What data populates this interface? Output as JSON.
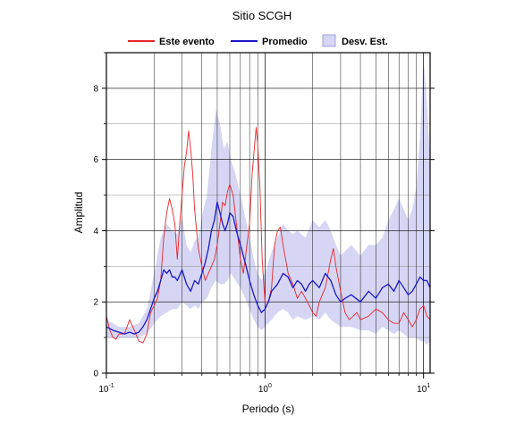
{
  "chart_data": {
    "type": "line",
    "title": "Sitio SCGH",
    "xlabel": "Periodo (s)",
    "ylabel": "Amplitud",
    "x_scale": "log",
    "xlim": [
      0.1,
      11
    ],
    "ylim": [
      0,
      9
    ],
    "y_ticks": [
      "0",
      "2",
      "4",
      "6",
      "8"
    ],
    "x_ticks": [
      {
        "base": "10",
        "exp": "-1"
      },
      {
        "base": "10",
        "exp": "0"
      },
      {
        "base": "10",
        "exp": "1"
      }
    ],
    "grid": true,
    "legend": [
      {
        "label": "Este evento",
        "kind": "line",
        "color": "#e8262b"
      },
      {
        "label": "Promedio",
        "kind": "line",
        "color": "#1b18c8"
      },
      {
        "label": "Desv. Est.",
        "kind": "band",
        "color": "#d6d6f4"
      }
    ],
    "colors": {
      "este_evento": "#e8262b",
      "promedio": "#1b18c8",
      "band": "#d6d6f4",
      "band_edge": "#8f8fd8"
    },
    "series": [
      {
        "name": "Este evento",
        "points": [
          [
            0.1,
            1.6
          ],
          [
            0.105,
            1.2
          ],
          [
            0.11,
            1.0
          ],
          [
            0.115,
            0.95
          ],
          [
            0.12,
            1.1
          ],
          [
            0.13,
            1.1
          ],
          [
            0.14,
            1.5
          ],
          [
            0.15,
            1.2
          ],
          [
            0.16,
            0.9
          ],
          [
            0.17,
            0.85
          ],
          [
            0.18,
            1.1
          ],
          [
            0.19,
            1.7
          ],
          [
            0.2,
            1.9
          ],
          [
            0.21,
            2.1
          ],
          [
            0.22,
            2.6
          ],
          [
            0.23,
            3.8
          ],
          [
            0.24,
            4.5
          ],
          [
            0.25,
            4.9
          ],
          [
            0.26,
            4.6
          ],
          [
            0.27,
            4.2
          ],
          [
            0.28,
            3.2
          ],
          [
            0.29,
            4.2
          ],
          [
            0.3,
            5.0
          ],
          [
            0.31,
            5.8
          ],
          [
            0.32,
            6.2
          ],
          [
            0.33,
            6.8
          ],
          [
            0.34,
            6.3
          ],
          [
            0.35,
            5.6
          ],
          [
            0.36,
            4.6
          ],
          [
            0.38,
            3.5
          ],
          [
            0.4,
            3.0
          ],
          [
            0.42,
            2.6
          ],
          [
            0.45,
            2.9
          ],
          [
            0.48,
            3.2
          ],
          [
            0.5,
            3.6
          ],
          [
            0.52,
            4.2
          ],
          [
            0.54,
            4.8
          ],
          [
            0.56,
            4.7
          ],
          [
            0.58,
            5.1
          ],
          [
            0.6,
            5.3
          ],
          [
            0.63,
            5.0
          ],
          [
            0.66,
            4.2
          ],
          [
            0.7,
            3.2
          ],
          [
            0.73,
            2.8
          ],
          [
            0.76,
            3.4
          ],
          [
            0.8,
            4.2
          ],
          [
            0.83,
            5.6
          ],
          [
            0.86,
            6.4
          ],
          [
            0.88,
            6.9
          ],
          [
            0.9,
            6.4
          ],
          [
            0.93,
            5.2
          ],
          [
            0.96,
            3.2
          ],
          [
            1.0,
            2.0
          ],
          [
            1.05,
            2.0
          ],
          [
            1.1,
            2.4
          ],
          [
            1.15,
            3.6
          ],
          [
            1.2,
            4.0
          ],
          [
            1.25,
            4.1
          ],
          [
            1.3,
            3.6
          ],
          [
            1.35,
            3.2
          ],
          [
            1.4,
            2.8
          ],
          [
            1.5,
            2.5
          ],
          [
            1.6,
            2.1
          ],
          [
            1.7,
            2.3
          ],
          [
            1.8,
            2.1
          ],
          [
            1.9,
            1.9
          ],
          [
            2.0,
            1.7
          ],
          [
            2.1,
            1.6
          ],
          [
            2.2,
            2.0
          ],
          [
            2.4,
            2.4
          ],
          [
            2.6,
            3.2
          ],
          [
            2.7,
            3.5
          ],
          [
            2.8,
            3.0
          ],
          [
            3.0,
            2.3
          ],
          [
            3.2,
            1.7
          ],
          [
            3.4,
            1.5
          ],
          [
            3.6,
            1.6
          ],
          [
            3.8,
            1.7
          ],
          [
            4.0,
            1.5
          ],
          [
            4.5,
            1.6
          ],
          [
            5.0,
            1.8
          ],
          [
            5.5,
            1.7
          ],
          [
            6.0,
            1.5
          ],
          [
            6.5,
            1.4
          ],
          [
            7.0,
            1.4
          ],
          [
            7.5,
            1.7
          ],
          [
            8.0,
            1.5
          ],
          [
            8.5,
            1.3
          ],
          [
            9.0,
            1.5
          ],
          [
            9.5,
            1.8
          ],
          [
            10.0,
            1.9
          ],
          [
            10.5,
            1.6
          ],
          [
            11.0,
            1.5
          ]
        ]
      },
      {
        "name": "Promedio",
        "points": [
          [
            0.1,
            1.3
          ],
          [
            0.11,
            1.2
          ],
          [
            0.12,
            1.15
          ],
          [
            0.13,
            1.1
          ],
          [
            0.14,
            1.15
          ],
          [
            0.15,
            1.1
          ],
          [
            0.16,
            1.15
          ],
          [
            0.17,
            1.3
          ],
          [
            0.18,
            1.5
          ],
          [
            0.19,
            1.8
          ],
          [
            0.2,
            2.1
          ],
          [
            0.21,
            2.3
          ],
          [
            0.22,
            2.6
          ],
          [
            0.23,
            2.9
          ],
          [
            0.24,
            2.8
          ],
          [
            0.25,
            2.9
          ],
          [
            0.26,
            2.7
          ],
          [
            0.27,
            2.7
          ],
          [
            0.28,
            2.6
          ],
          [
            0.3,
            2.9
          ],
          [
            0.32,
            2.5
          ],
          [
            0.34,
            2.3
          ],
          [
            0.36,
            2.6
          ],
          [
            0.38,
            2.5
          ],
          [
            0.4,
            2.8
          ],
          [
            0.42,
            3.1
          ],
          [
            0.44,
            3.5
          ],
          [
            0.46,
            4.0
          ],
          [
            0.48,
            4.3
          ],
          [
            0.5,
            4.8
          ],
          [
            0.52,
            4.5
          ],
          [
            0.54,
            4.2
          ],
          [
            0.56,
            4.0
          ],
          [
            0.58,
            4.2
          ],
          [
            0.6,
            4.5
          ],
          [
            0.63,
            4.4
          ],
          [
            0.66,
            4.0
          ],
          [
            0.7,
            3.6
          ],
          [
            0.75,
            3.1
          ],
          [
            0.8,
            2.6
          ],
          [
            0.85,
            2.2
          ],
          [
            0.9,
            1.9
          ],
          [
            0.95,
            1.7
          ],
          [
            1.0,
            1.8
          ],
          [
            1.05,
            2.0
          ],
          [
            1.1,
            2.3
          ],
          [
            1.2,
            2.5
          ],
          [
            1.3,
            2.8
          ],
          [
            1.4,
            2.7
          ],
          [
            1.5,
            2.4
          ],
          [
            1.6,
            2.6
          ],
          [
            1.7,
            2.5
          ],
          [
            1.8,
            2.3
          ],
          [
            1.9,
            2.5
          ],
          [
            2.0,
            2.6
          ],
          [
            2.2,
            2.4
          ],
          [
            2.4,
            2.8
          ],
          [
            2.6,
            2.6
          ],
          [
            2.8,
            2.2
          ],
          [
            3.0,
            2.0
          ],
          [
            3.2,
            2.1
          ],
          [
            3.5,
            2.2
          ],
          [
            4.0,
            2.0
          ],
          [
            4.5,
            2.3
          ],
          [
            5.0,
            2.1
          ],
          [
            5.5,
            2.4
          ],
          [
            6.0,
            2.5
          ],
          [
            6.5,
            2.3
          ],
          [
            7.0,
            2.6
          ],
          [
            7.5,
            2.4
          ],
          [
            8.0,
            2.2
          ],
          [
            8.5,
            2.3
          ],
          [
            9.0,
            2.5
          ],
          [
            9.5,
            2.7
          ],
          [
            10.0,
            2.6
          ],
          [
            10.5,
            2.6
          ],
          [
            11.0,
            2.4
          ]
        ]
      }
    ],
    "band": {
      "name": "Desv. Est.",
      "points": [
        [
          0.1,
          1.0,
          1.5
        ],
        [
          0.12,
          1.0,
          1.3
        ],
        [
          0.14,
          1.0,
          1.3
        ],
        [
          0.16,
          1.0,
          1.4
        ],
        [
          0.18,
          1.1,
          1.8
        ],
        [
          0.2,
          1.4,
          2.8
        ],
        [
          0.22,
          1.6,
          3.8
        ],
        [
          0.24,
          1.7,
          4.2
        ],
        [
          0.26,
          1.8,
          4.0
        ],
        [
          0.28,
          1.8,
          3.9
        ],
        [
          0.3,
          2.0,
          4.4
        ],
        [
          0.32,
          1.9,
          3.6
        ],
        [
          0.34,
          1.8,
          3.4
        ],
        [
          0.36,
          1.9,
          3.7
        ],
        [
          0.38,
          1.8,
          3.8
        ],
        [
          0.4,
          2.0,
          4.4
        ],
        [
          0.43,
          2.1,
          5.0
        ],
        [
          0.46,
          2.4,
          6.3
        ],
        [
          0.49,
          2.6,
          7.4
        ],
        [
          0.52,
          2.5,
          7.0
        ],
        [
          0.55,
          2.5,
          6.3
        ],
        [
          0.58,
          2.6,
          6.5
        ],
        [
          0.61,
          2.8,
          6.0
        ],
        [
          0.65,
          2.6,
          5.6
        ],
        [
          0.7,
          2.4,
          5.0
        ],
        [
          0.75,
          2.1,
          4.4
        ],
        [
          0.8,
          1.8,
          3.8
        ],
        [
          0.85,
          1.5,
          3.2
        ],
        [
          0.9,
          1.3,
          2.8
        ],
        [
          0.95,
          1.2,
          2.6
        ],
        [
          1.0,
          1.3,
          2.8
        ],
        [
          1.1,
          1.5,
          3.4
        ],
        [
          1.2,
          1.7,
          3.8
        ],
        [
          1.3,
          1.8,
          4.2
        ],
        [
          1.4,
          1.7,
          4.0
        ],
        [
          1.5,
          1.5,
          3.9
        ],
        [
          1.6,
          1.6,
          4.0
        ],
        [
          1.8,
          1.5,
          3.8
        ],
        [
          2.0,
          1.6,
          4.3
        ],
        [
          2.2,
          1.5,
          4.1
        ],
        [
          2.4,
          1.7,
          4.3
        ],
        [
          2.6,
          1.5,
          4.0
        ],
        [
          2.8,
          1.4,
          3.6
        ],
        [
          3.0,
          1.3,
          3.3
        ],
        [
          3.5,
          1.3,
          3.6
        ],
        [
          4.0,
          1.2,
          3.3
        ],
        [
          4.5,
          1.2,
          3.6
        ],
        [
          5.0,
          1.1,
          3.6
        ],
        [
          5.5,
          1.3,
          3.8
        ],
        [
          6.0,
          1.2,
          4.3
        ],
        [
          6.5,
          1.1,
          4.6
        ],
        [
          7.0,
          1.2,
          4.9
        ],
        [
          7.5,
          1.1,
          4.6
        ],
        [
          8.0,
          1.0,
          4.3
        ],
        [
          8.5,
          1.0,
          4.6
        ],
        [
          9.0,
          1.0,
          5.2
        ],
        [
          9.5,
          0.9,
          6.6
        ],
        [
          10.0,
          0.9,
          8.9
        ],
        [
          10.5,
          0.8,
          7.6
        ],
        [
          11.0,
          0.9,
          6.0
        ]
      ]
    }
  }
}
